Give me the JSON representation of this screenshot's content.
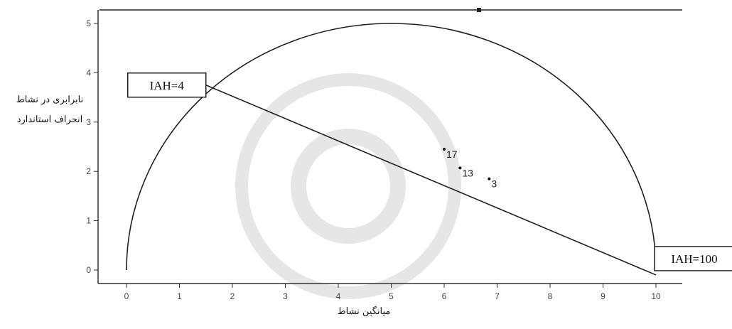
{
  "chart_data": {
    "type": "scatter",
    "xlabel": "میانگین نشاط",
    "ylabel_line1": "نابرابری در نشاط",
    "ylabel_line2": "انحراف استاندارد",
    "xlim": [
      -0.4,
      10.4
    ],
    "ylim": [
      -0.3,
      5.3
    ],
    "x_ticks": [
      "0",
      "1",
      "2",
      "3",
      "4",
      "5",
      "6",
      "7",
      "8",
      "9",
      "10"
    ],
    "y_ticks": [
      "0",
      "1",
      "2",
      "3",
      "4",
      "5"
    ],
    "points": [
      {
        "label": "17",
        "x": 6.0,
        "y": 2.45
      },
      {
        "label": "13",
        "x": 6.3,
        "y": 2.07
      },
      {
        "label": "3",
        "x": 6.85,
        "y": 1.85
      }
    ],
    "iah_line": {
      "start": {
        "x": 1.5,
        "y": 3.75
      },
      "end": {
        "x": 10,
        "y": -0.1
      }
    },
    "annotations": [
      {
        "text": "IAH=4",
        "x": 1.5,
        "y": 3.75
      },
      {
        "text": "IAH=100",
        "x": 10,
        "y": -0.1
      }
    ],
    "semicircle": {
      "center_x": 5,
      "radius": 5
    }
  }
}
